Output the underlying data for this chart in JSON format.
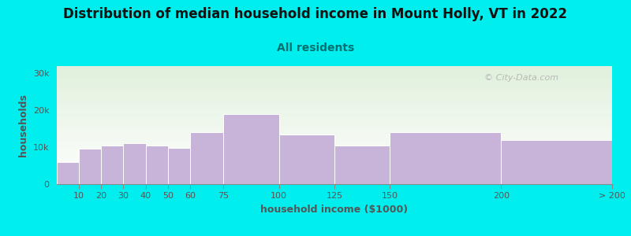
{
  "title": "Distribution of median household income in Mount Holly, VT in 2022",
  "subtitle": "All residents",
  "xlabel": "household income ($1000)",
  "ylabel": "households",
  "background_outer": "#00eeee",
  "background_inner_top": "#e0f0dc",
  "background_inner_bottom": "#ffffff",
  "bar_color": "#c8b4d8",
  "bar_edge_color": "#ffffff",
  "bin_edges": [
    0,
    10,
    20,
    30,
    40,
    50,
    60,
    75,
    100,
    125,
    150,
    200,
    250
  ],
  "bin_labels": [
    "10",
    "20",
    "30",
    "40",
    "50",
    "60",
    "75",
    "100",
    "125",
    "150",
    "200",
    "> 200"
  ],
  "values": [
    6000,
    9500,
    10500,
    11000,
    10500,
    9800,
    14000,
    19000,
    13500,
    10500,
    14000,
    12000
  ],
  "yticks": [
    0,
    10000,
    20000,
    30000
  ],
  "ytick_labels": [
    "0",
    "10k",
    "20k",
    "30k"
  ],
  "ylim": [
    0,
    32000
  ],
  "title_fontsize": 12,
  "subtitle_fontsize": 10,
  "axis_label_fontsize": 9,
  "tick_fontsize": 8,
  "watermark": "© City-Data.com",
  "subtitle_color": "#007070",
  "title_color": "#111111",
  "axis_label_color": "#555555",
  "tick_color": "#555555"
}
